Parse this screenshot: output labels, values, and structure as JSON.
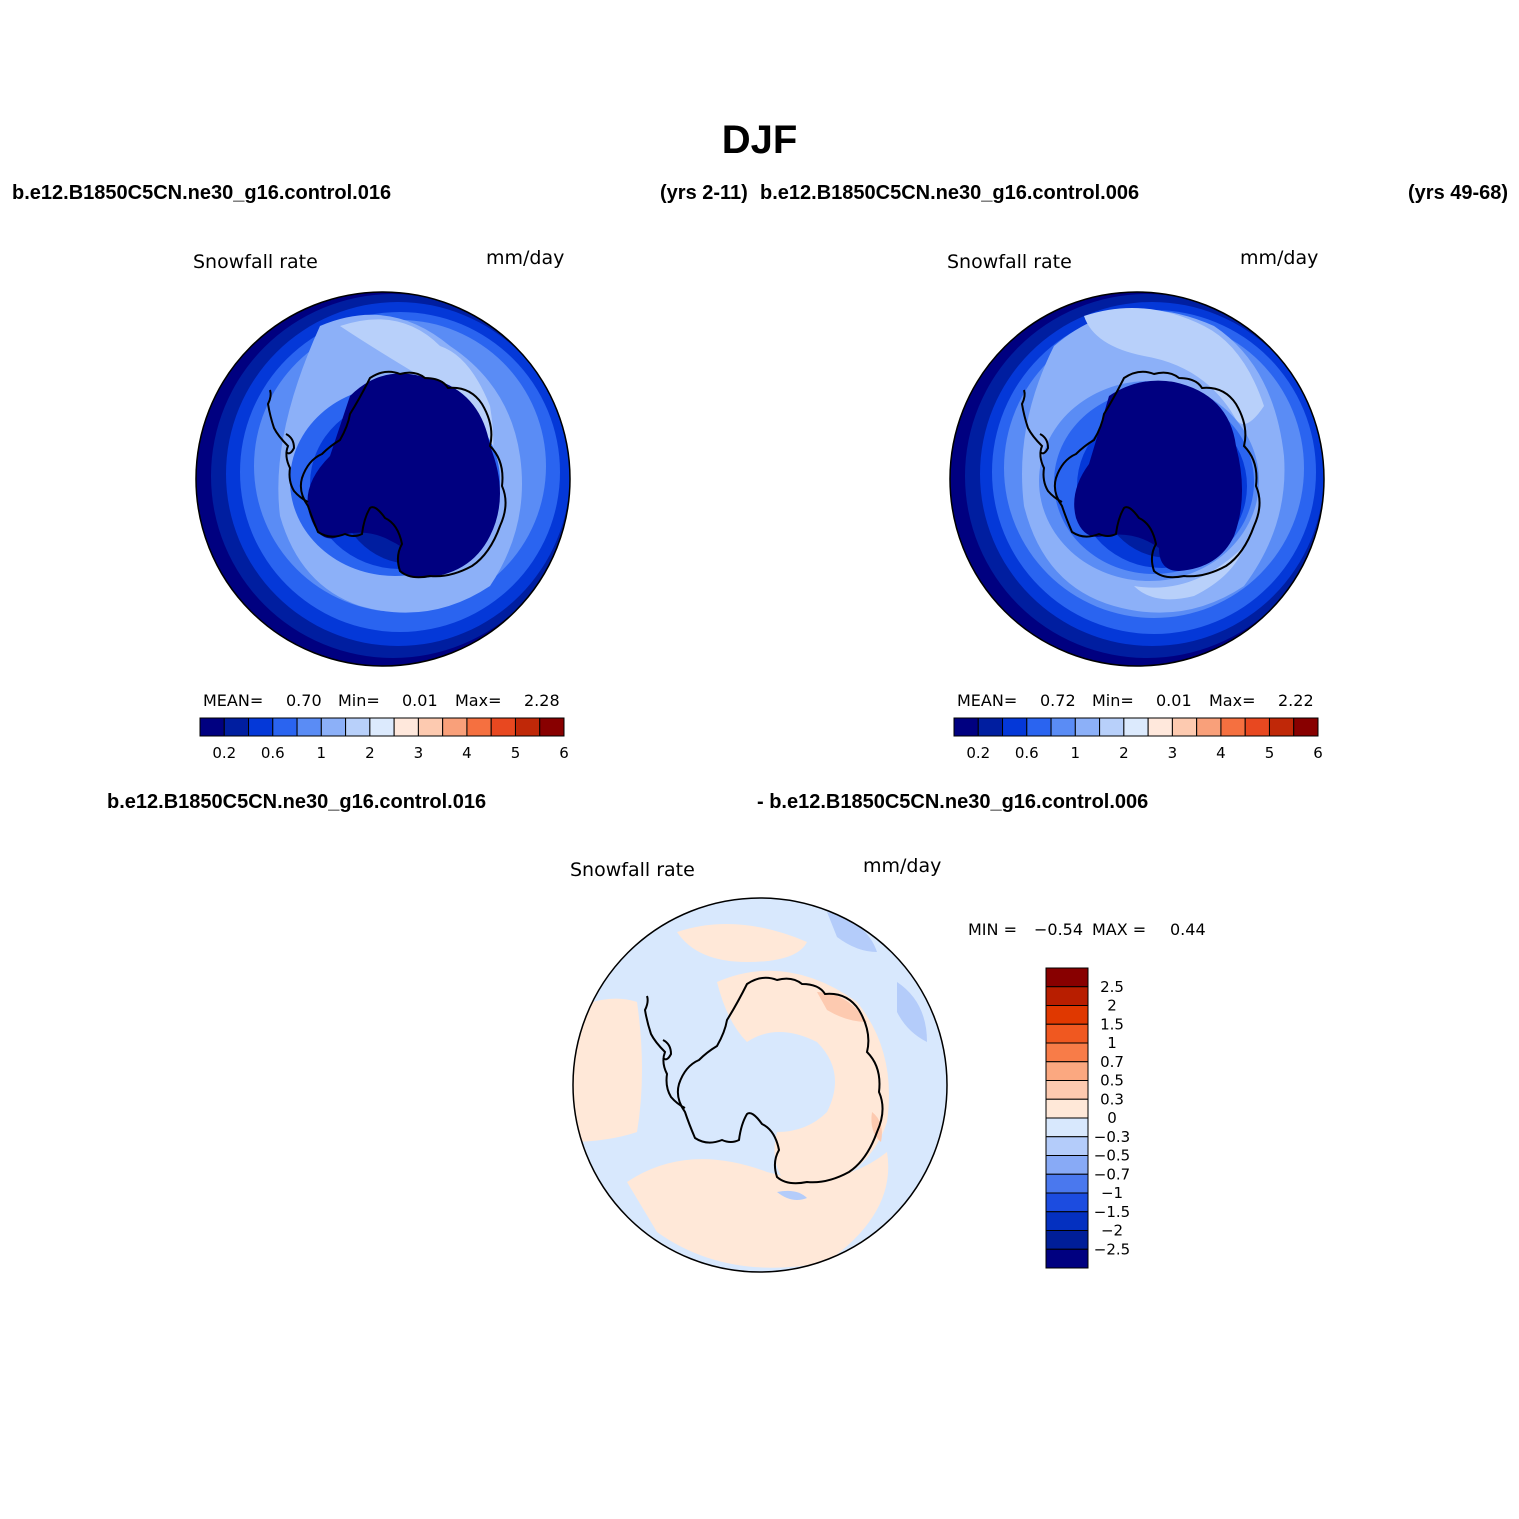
{
  "title": "DJF",
  "header": {
    "case_a": "b.e12.B1850C5CN.ne30_g16.control.016",
    "years_a": "(yrs 2-11)",
    "case_b": "b.e12.B1850C5CN.ne30_g16.control.006",
    "years_b": "(yrs 49-68)"
  },
  "diff_header": {
    "case_a": "b.e12.B1850C5CN.ne30_g16.control.016",
    "case_b": "- b.e12.B1850C5CN.ne30_g16.control.006"
  },
  "panels": [
    {
      "variable": "Snowfall rate",
      "units": "mm/day",
      "stats": {
        "mean_label": "MEAN=",
        "mean": "0.70",
        "min_label": "Min=",
        "min": "0.01",
        "max_label": "Max=",
        "max": "2.28"
      }
    },
    {
      "variable": "Snowfall rate",
      "units": "mm/day",
      "stats": {
        "mean_label": "MEAN=",
        "mean": "0.72",
        "min_label": "Min=",
        "min": "0.01",
        "max_label": "Max=",
        "max": "2.22"
      }
    }
  ],
  "diff_panel": {
    "variable": "Snowfall rate",
    "units": "mm/day",
    "min_label": "MIN =",
    "min": "−0.54",
    "max_label": "MAX =",
    "max": "0.44"
  },
  "colorbar": {
    "colors": [
      "#000080",
      "#001ea0",
      "#0438d8",
      "#2a64f0",
      "#5a8cf5",
      "#8cb0f8",
      "#b8d0fa",
      "#dceafd",
      "#ffe8dc",
      "#fdcab0",
      "#f9a07a",
      "#f57040",
      "#e84820",
      "#c02808",
      "#880000"
    ],
    "tick_labels": [
      "0.2",
      "0.6",
      "1",
      "2",
      "3",
      "4",
      "5",
      "6"
    ]
  },
  "diff_colorbar": {
    "colors_top_to_bottom": [
      "#880000",
      "#b81e00",
      "#e03800",
      "#f05820",
      "#f87c48",
      "#fba880",
      "#fdcab0",
      "#ffe8d8",
      "#d8e8fd",
      "#b4ccfa",
      "#88aaf6",
      "#4a78ee",
      "#1c4ce0",
      "#0430c0",
      "#001e98",
      "#000080"
    ],
    "tick_labels": [
      "2.5",
      "2",
      "1.5",
      "1",
      "0.7",
      "0.5",
      "0.3",
      "0",
      "−0.3",
      "−0.5",
      "−0.7",
      "−1",
      "−1.5",
      "−2",
      "−2.5"
    ]
  },
  "map_colors": {
    "c_navy": "#000080",
    "c_darkblue": "#001ea0",
    "c_blue": "#0438d8",
    "c_mid": "#2a64f0",
    "c_light": "#5a8cf5",
    "c_pale": "#8cb0f8",
    "c_paler": "#b8d0fa",
    "diff_pos": "#ffe8d8",
    "diff_neg": "#d8e8fd",
    "diff_neg2": "#b4ccfa",
    "diff_pos2": "#fdcab0"
  }
}
